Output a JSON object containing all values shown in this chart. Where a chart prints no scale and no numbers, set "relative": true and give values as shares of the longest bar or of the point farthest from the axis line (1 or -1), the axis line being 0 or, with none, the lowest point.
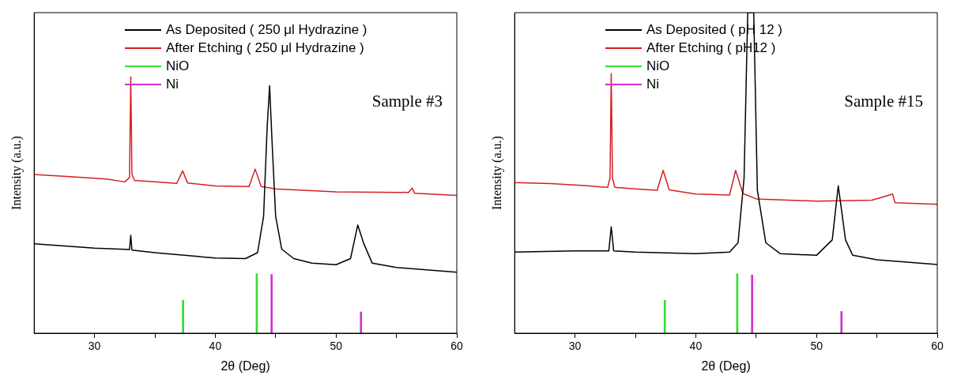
{
  "chart_data": [
    {
      "type": "line",
      "relative": true,
      "xlabel": "2θ (Deg)",
      "ylabel": "Intensity (a.u.)",
      "xlim": [
        25,
        60
      ],
      "xticks": [
        30,
        {
          "value": 35,
          "label": null
        },
        40,
        {
          "value": 45,
          "label": null
        },
        50,
        {
          "value": 55,
          "label": null
        },
        60
      ],
      "tick_labels": "x",
      "legend": "top",
      "grid": false,
      "marker": "none",
      "annotations": [
        "Sample #3"
      ],
      "series": [
        {
          "name": "As Deposited ( 250 μl Hydrazine )",
          "color": "#000000",
          "x": [
            25,
            30,
            32.9,
            33.0,
            33.1,
            35,
            40,
            42.5,
            43.5,
            44.0,
            44.3,
            44.5,
            44.7,
            45,
            45.5,
            46.5,
            48,
            50,
            51.2,
            51.8,
            52.3,
            53,
            55,
            60
          ],
          "values": [
            0.349,
            0.332,
            0.326,
            0.382,
            0.324,
            0.314,
            0.293,
            0.291,
            0.314,
            0.455,
            0.807,
            0.965,
            0.748,
            0.455,
            0.328,
            0.291,
            0.273,
            0.267,
            0.291,
            0.422,
            0.349,
            0.273,
            0.256,
            0.238
          ]
        },
        {
          "name": "After Etching ( 250 μl Hydrazine )",
          "color": "#d62020",
          "x": [
            25,
            28,
            31,
            32.5,
            32.9,
            33.0,
            33.1,
            33.3,
            35,
            36.8,
            37.3,
            37.7,
            40,
            42.8,
            43.3,
            43.8,
            45,
            50,
            56,
            56.3,
            56.5,
            60
          ],
          "values": [
            0.619,
            0.61,
            0.601,
            0.59,
            0.607,
            1.0,
            0.619,
            0.596,
            0.59,
            0.584,
            0.633,
            0.586,
            0.574,
            0.572,
            0.64,
            0.572,
            0.563,
            0.551,
            0.549,
            0.566,
            0.546,
            0.537
          ]
        },
        {
          "name": "NiO",
          "type": "bar",
          "color": "#33dd33",
          "x": [
            37.4,
            43.5
          ],
          "values": [
            0.129,
            0.232
          ]
        },
        {
          "name": "Ni",
          "type": "bar",
          "color": "#cc33cc",
          "x": [
            44.6,
            52.0
          ],
          "values": [
            0.229,
            0.083
          ]
        }
      ]
    },
    {
      "type": "line",
      "relative": true,
      "xlabel": "2θ (Deg)",
      "ylabel": "Intensity (a.u.)",
      "xlim": [
        25,
        60
      ],
      "xticks": [
        30,
        {
          "value": 35,
          "label": null
        },
        40,
        {
          "value": 45,
          "label": null
        },
        50,
        {
          "value": 55,
          "label": null
        },
        60
      ],
      "tick_labels": "x",
      "legend": "top",
      "grid": false,
      "marker": "none",
      "annotations": [
        "Sample #15"
      ],
      "series": [
        {
          "name": "As Deposited ( pH 12 )",
          "color": "#000000",
          "x": [
            25,
            30,
            32.8,
            33.0,
            33.2,
            35,
            40,
            42.8,
            43.5,
            44.0,
            44.3,
            44.8,
            45.1,
            45.8,
            47,
            50,
            51.3,
            51.8,
            52.4,
            53,
            55,
            60
          ],
          "values": [
            0.253,
            0.257,
            0.257,
            0.332,
            0.257,
            0.253,
            0.248,
            0.253,
            0.282,
            0.484,
            1.0,
            1.0,
            0.446,
            0.282,
            0.248,
            0.243,
            0.291,
            0.46,
            0.291,
            0.243,
            0.229,
            0.214
          ]
        },
        {
          "name": "After Etching ( pH12 )",
          "color": "#d62020",
          "x": [
            25,
            28,
            31,
            32.7,
            32.9,
            33.0,
            33.1,
            33.3,
            35,
            36.8,
            37.3,
            37.8,
            40,
            42.8,
            43.3,
            43.9,
            45,
            50,
            54.6,
            56.3,
            56.5,
            60
          ],
          "values": [
            0.47,
            0.467,
            0.46,
            0.455,
            0.484,
            0.81,
            0.484,
            0.455,
            0.45,
            0.446,
            0.508,
            0.447,
            0.434,
            0.431,
            0.508,
            0.436,
            0.419,
            0.412,
            0.415,
            0.434,
            0.407,
            0.402
          ]
        },
        {
          "name": "NiO",
          "type": "bar",
          "color": "#33dd33",
          "x": [
            37.5,
            43.5
          ],
          "values": [
            0.103,
            0.185
          ]
        },
        {
          "name": "Ni",
          "type": "bar",
          "color": "#cc33cc",
          "x": [
            44.6,
            52.0
          ],
          "values": [
            0.182,
            0.068
          ]
        }
      ]
    }
  ]
}
